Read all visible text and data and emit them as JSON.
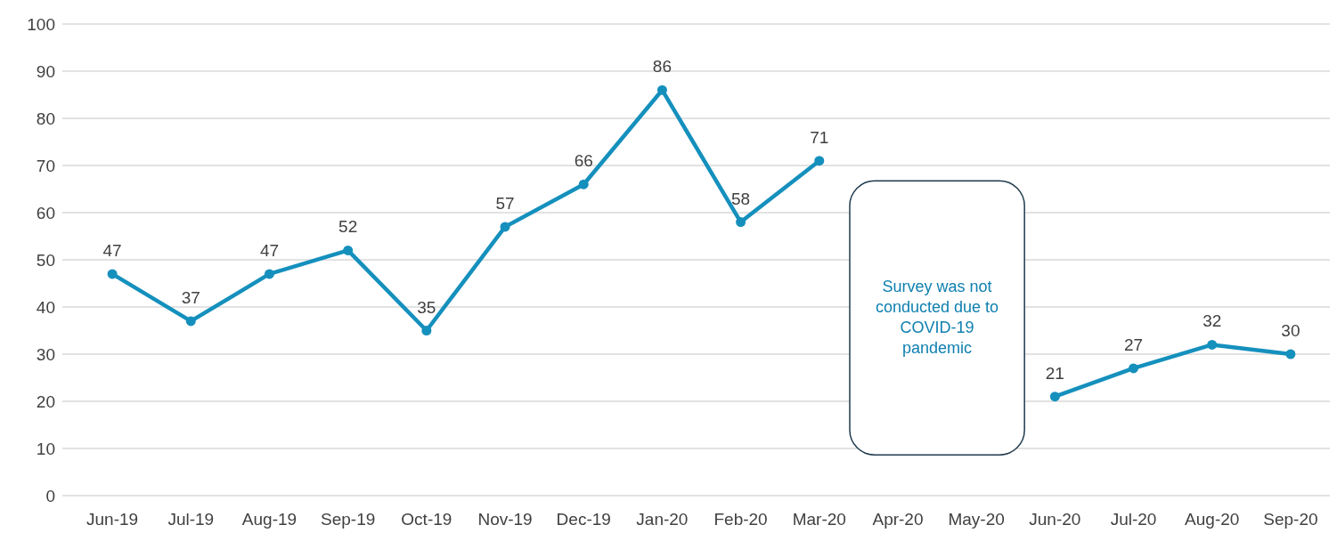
{
  "chart_data": {
    "type": "line",
    "categories": [
      "Jun-19",
      "Jul-19",
      "Aug-19",
      "Sep-19",
      "Oct-19",
      "Nov-19",
      "Dec-19",
      "Jan-20",
      "Feb-20",
      "Mar-20",
      "Apr-20",
      "May-20",
      "Jun-20",
      "Jul-20",
      "Aug-20",
      "Sep-20"
    ],
    "series": [
      {
        "color": "#1590bd",
        "values": [
          47,
          37,
          47,
          52,
          35,
          57,
          66,
          86,
          58,
          71,
          null,
          null,
          21,
          27,
          32,
          30
        ]
      }
    ],
    "ylim": [
      0,
      100
    ],
    "yticks": [
      0,
      10,
      20,
      30,
      40,
      50,
      60,
      70,
      80,
      90,
      100
    ],
    "grid": "y",
    "marker": "circle",
    "line_style": "solid",
    "data_labels": true,
    "annotations": [
      "Survey was not conducted due to COVID-19 pandemic"
    ]
  }
}
